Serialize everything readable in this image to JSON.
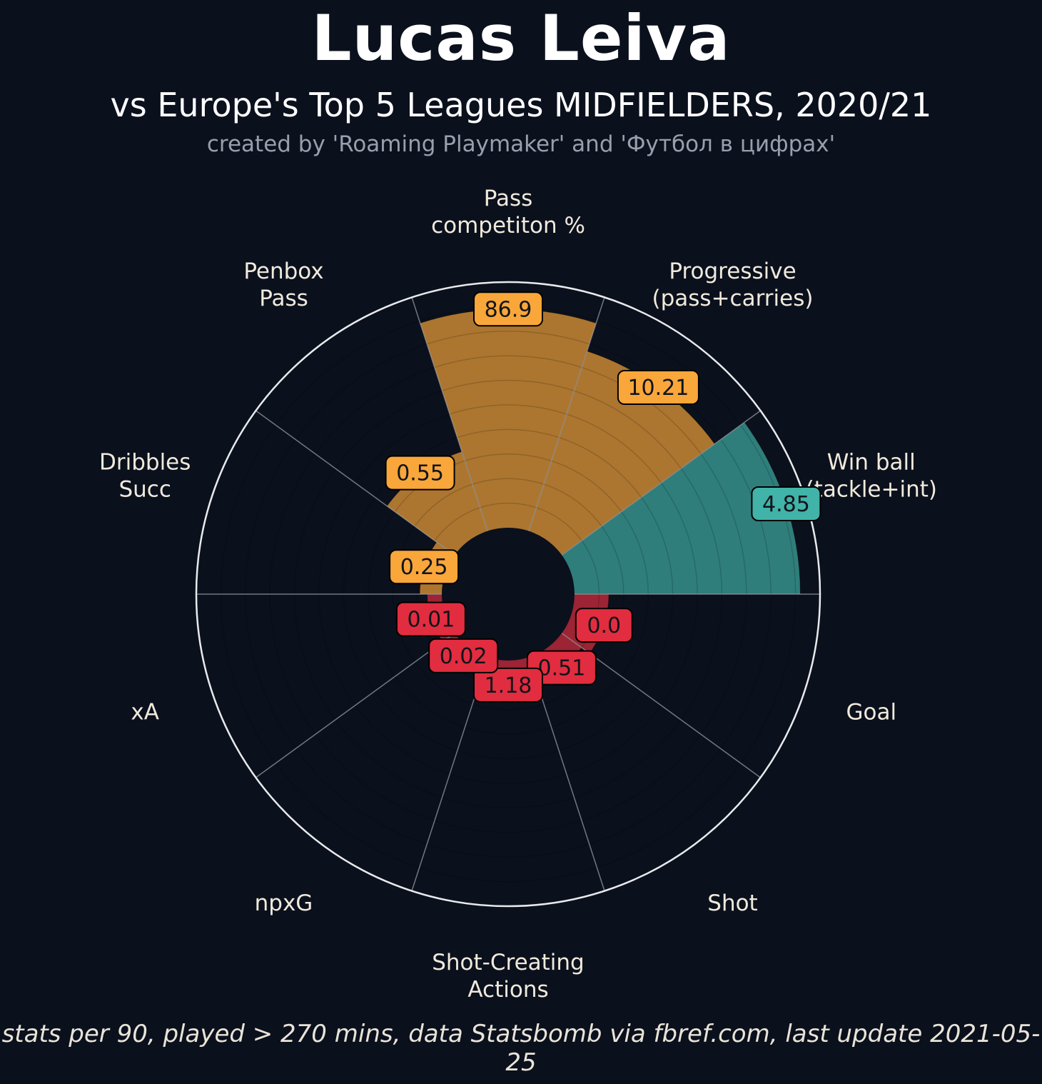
{
  "theme": {
    "background": "#0B101D",
    "text_primary": "#FFFFFF",
    "text_param": "#F0EADC",
    "text_credit": "#97A0AC",
    "badge_text": "#10141C",
    "ring_stroke": "#E9EAEC",
    "divider_stroke": "#C9CCD2"
  },
  "chart_data": {
    "type": "bar",
    "variant": "polar-pizza",
    "title": "Lucas Leiva",
    "subtitle": "vs Europe's Top 5 Leagues MIDFIELDERS, 2020/21",
    "credit": "created by 'Roaming Playmaker' and 'Футбол в цифрах'",
    "footnote": "stats per 90, played > 270 mins, data Statsbomb via fbref.com, last update 2021-05-25",
    "scale": {
      "min": 0,
      "max": 100,
      "unit": "percentile"
    },
    "legend": "none",
    "group_colors": {
      "passing": "#F9A63A",
      "defending": "#41B3A8",
      "attacking": "#E12D3F"
    },
    "params": [
      {
        "label_lines": [
          "Pass",
          "competiton %"
        ],
        "value": "86.9",
        "percentile": 89,
        "group": "passing"
      },
      {
        "label_lines": [
          "Progressive",
          "(pass+carries)"
        ],
        "value": "10.21",
        "percentile": 77,
        "group": "passing"
      },
      {
        "label_lines": [
          "Win ball",
          "(tackle+int)"
        ],
        "value": "4.85",
        "percentile": 92,
        "group": "defending"
      },
      {
        "label_lines": [
          "Goal"
        ],
        "value": "0.0",
        "percentile": 14,
        "group": "attacking"
      },
      {
        "label_lines": [
          "Shot"
        ],
        "value": "0.51",
        "percentile": 10,
        "group": "attacking"
      },
      {
        "label_lines": [
          "Shot-Creating",
          "Actions"
        ],
        "value": "1.18",
        "percentile": 10,
        "group": "attacking"
      },
      {
        "label_lines": [
          "npxG"
        ],
        "value": "0.02",
        "percentile": 4,
        "group": "attacking"
      },
      {
        "label_lines": [
          "xA"
        ],
        "value": "0.01",
        "percentile": 6,
        "group": "attacking"
      },
      {
        "label_lines": [
          "Dribbles",
          "Succ"
        ],
        "value": "0.25",
        "percentile": 9,
        "group": "passing"
      },
      {
        "label_lines": [
          "Penbox",
          "Pass"
        ],
        "value": "0.55",
        "percentile": 34,
        "group": "passing"
      }
    ]
  }
}
